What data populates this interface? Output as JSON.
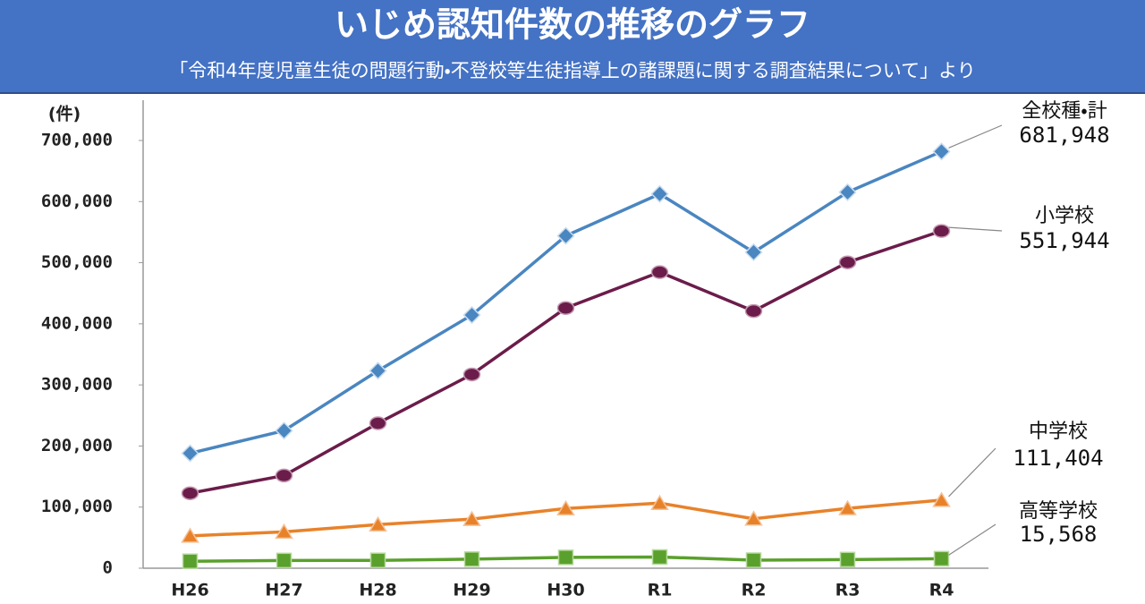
{
  "chart_data": {
    "type": "line",
    "title": "いじめ認知件数の推移のグラフ",
    "subtitle": "「令和4年度児童生徒の問題行動・不登校等生徒指導上の諸課題に関する調査結果について」より",
    "y_label": "(件)",
    "categories": [
      "H26",
      "H27",
      "H28",
      "H29",
      "H30",
      "R1",
      "R2",
      "R3",
      "R4"
    ],
    "series": [
      {
        "name": "全校種・計",
        "color": "#4a86c0",
        "marker": "diamond",
        "values": [
          188072,
          225132,
          323143,
          414378,
          543933,
          612496,
          517163,
          615351,
          681948
        ],
        "value_labels": [
          null,
          null,
          null,
          null,
          null,
          null,
          null,
          null,
          "681,948"
        ]
      },
      {
        "name": "小学校",
        "color": "#6b1c4a",
        "marker": "circle",
        "values": [
          122734,
          151692,
          237256,
          317121,
          425844,
          484545,
          420897,
          500562,
          551944
        ],
        "value_labels": [
          null,
          null,
          null,
          null,
          null,
          null,
          null,
          null,
          "551,944"
        ]
      },
      {
        "name": "中学校",
        "color": "#e8822a",
        "marker": "triangle",
        "values": [
          52971,
          59502,
          71309,
          80424,
          97704,
          106524,
          80877,
          97937,
          111404
        ],
        "value_labels": [
          null,
          null,
          null,
          null,
          null,
          null,
          null,
          null,
          "111,404"
        ]
      },
      {
        "name": "高等学校",
        "color": "#5aa02c",
        "marker": "square",
        "values": [
          11404,
          12664,
          12874,
          14789,
          17709,
          18352,
          13126,
          14157,
          15568
        ],
        "value_labels": [
          null,
          null,
          null,
          null,
          null,
          null,
          null,
          null,
          "15,568"
        ]
      }
    ],
    "ylim": [
      0,
      700000
    ],
    "yticks": [
      0,
      {
        "value": 100000,
        "label": "100,000"
      },
      {
        "value": 200000,
        "label": "200,000"
      },
      {
        "value": 300000,
        "label": "300,000"
      },
      {
        "value": 400000,
        "label": "400,000"
      },
      {
        "value": 500000,
        "label": "500,000"
      },
      {
        "value": 600000,
        "label": "600,000"
      },
      {
        "value": 700000,
        "label": "700,000"
      }
    ],
    "grid": false
  }
}
